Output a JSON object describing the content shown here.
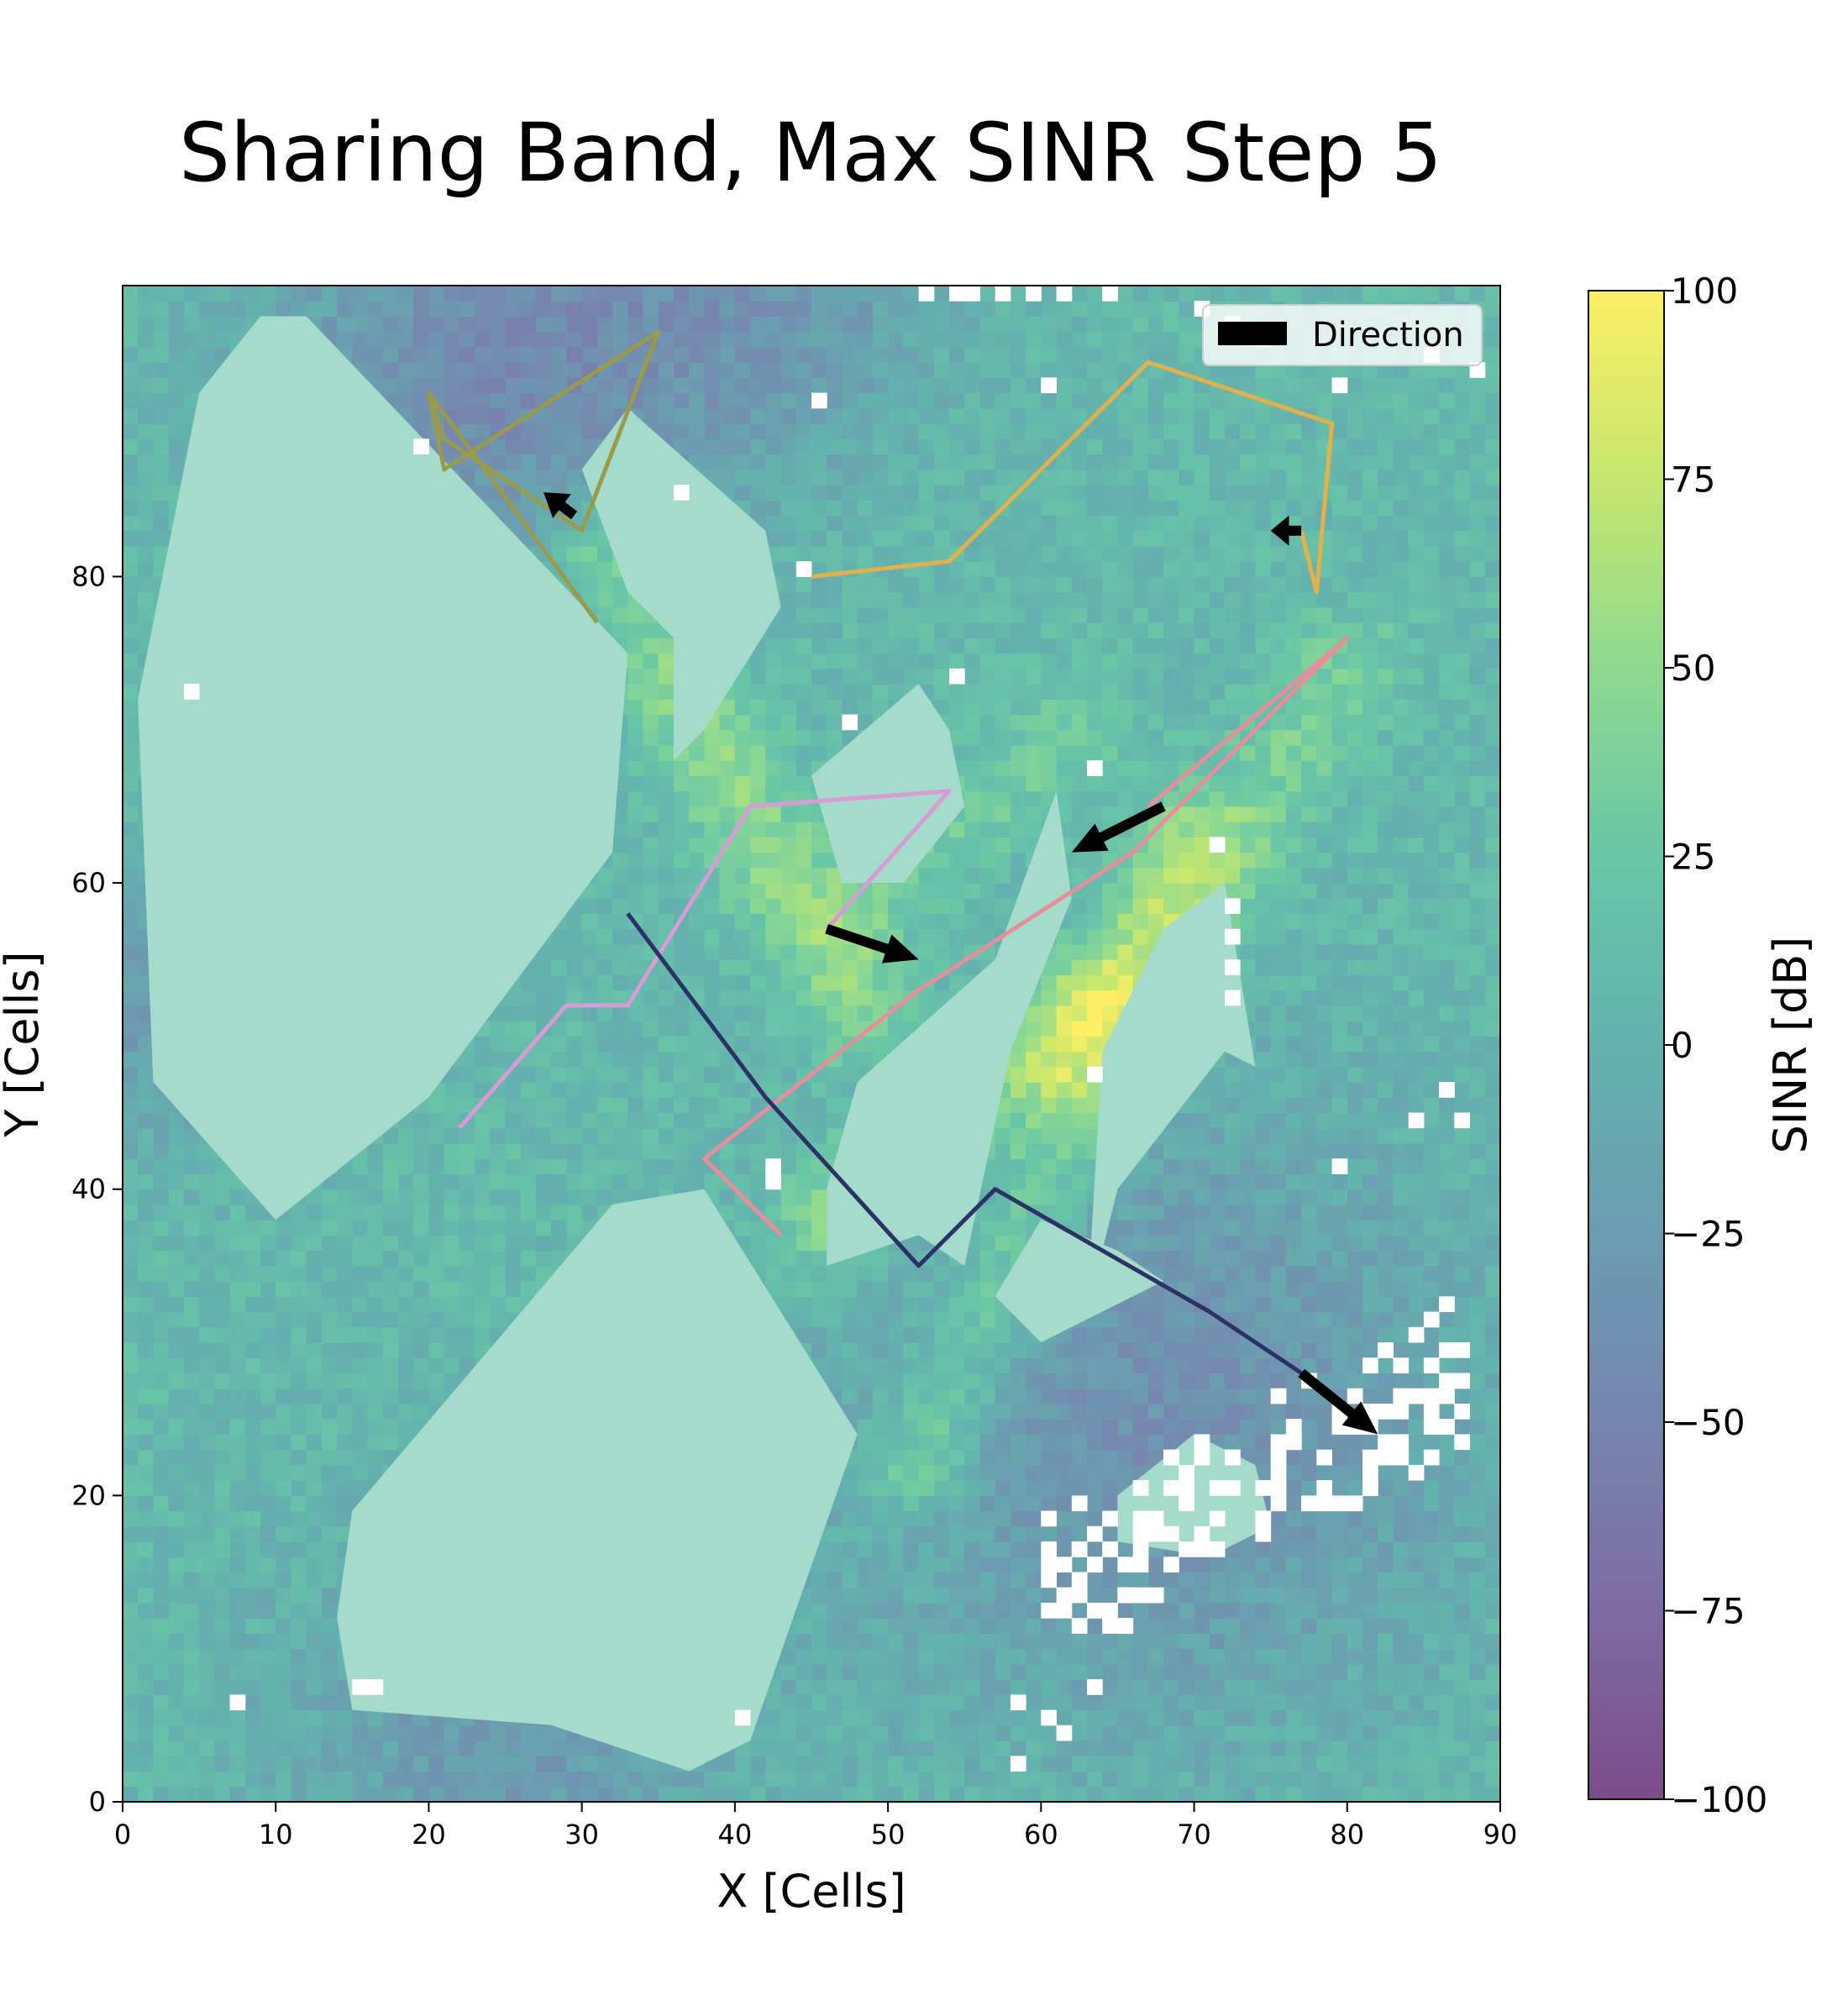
{
  "chart_data": {
    "type": "heatmap",
    "title": "Sharing Band, Max SINR Step 5",
    "xlabel": "X [Cells]",
    "ylabel": "Y [Cells]",
    "xlim": [
      0,
      90
    ],
    "ylim": [
      0,
      99
    ],
    "xticks": [
      0,
      10,
      20,
      30,
      40,
      50,
      60,
      70,
      80,
      90
    ],
    "yticks": [
      0,
      20,
      40,
      60,
      80
    ],
    "grid": false,
    "colorbar": {
      "label": "SINR [dB]",
      "range": [
        -100,
        100
      ],
      "ticks": [
        100,
        75,
        50,
        25,
        0,
        -25,
        -50,
        -75,
        -100
      ],
      "tick_labels": [
        "100",
        "75",
        "50",
        "25",
        "0",
        "−25",
        "−50",
        "−75",
        "−100"
      ],
      "colormap": "viridis",
      "alpha": 0.7
    },
    "legend": {
      "position": "top-right",
      "entries": [
        "Direction"
      ]
    },
    "obstacle_color": "#a4dbca",
    "trajectories": [
      {
        "color": "#999a4b",
        "points": [
          [
            31,
            77
          ],
          [
            20,
            92
          ],
          [
            21,
            87
          ],
          [
            35,
            96
          ],
          [
            30,
            83
          ],
          [
            21,
            89
          ],
          [
            20,
            92
          ]
        ],
        "arrow": {
          "from": [
            29.5,
            84
          ],
          "to": [
            27.5,
            85.5
          ]
        }
      },
      {
        "color": "#e3b14a",
        "points": [
          [
            45,
            80
          ],
          [
            54,
            81
          ],
          [
            67,
            94
          ],
          [
            79,
            90
          ],
          [
            78,
            79
          ],
          [
            77,
            83
          ]
        ],
        "arrow": {
          "from": [
            77,
            83
          ],
          "to": [
            75,
            83
          ]
        }
      },
      {
        "color": "#e68f9c",
        "points": [
          [
            43,
            37
          ],
          [
            38,
            42
          ],
          [
            52,
            53
          ],
          [
            66,
            62
          ],
          [
            80,
            76
          ],
          [
            67,
            65
          ]
        ],
        "arrow": {
          "from": [
            68,
            65
          ],
          "to": [
            62,
            62
          ]
        }
      },
      {
        "color": "#d79bd5",
        "points": [
          [
            22,
            44
          ],
          [
            29,
            52
          ],
          [
            33,
            52
          ],
          [
            41,
            65
          ],
          [
            54,
            66
          ],
          [
            46,
            57
          ]
        ],
        "arrow": {
          "from": [
            46,
            57
          ],
          "to": [
            52,
            55
          ]
        }
      },
      {
        "color": "#2d3266",
        "points": [
          [
            33,
            58
          ],
          [
            42,
            46
          ],
          [
            52,
            35
          ],
          [
            57,
            40
          ],
          [
            71,
            32
          ],
          [
            77,
            28
          ]
        ],
        "arrow": {
          "from": [
            77,
            28
          ],
          "to": [
            82,
            24
          ]
        }
      }
    ]
  }
}
